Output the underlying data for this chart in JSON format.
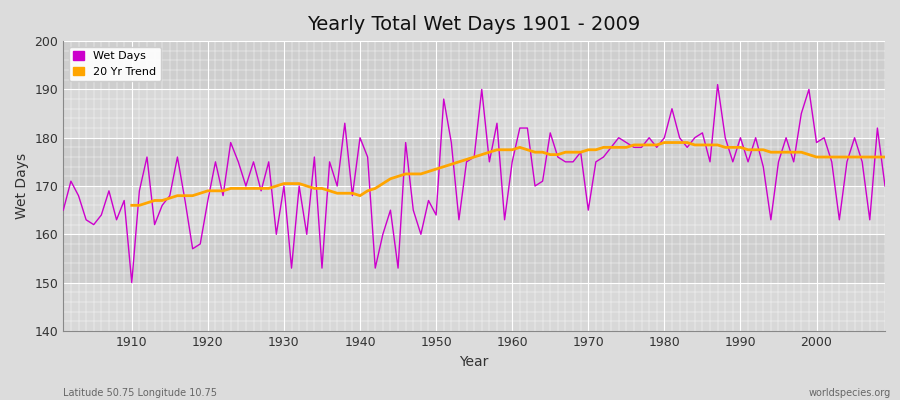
{
  "title": "Yearly Total Wet Days 1901 - 2009",
  "xlabel": "Year",
  "ylabel": "Wet Days",
  "ylim": [
    140,
    200
  ],
  "xlim": [
    1901,
    2009
  ],
  "yticks": [
    140,
    150,
    160,
    170,
    180,
    190,
    200
  ],
  "xticks": [
    1910,
    1920,
    1930,
    1940,
    1950,
    1960,
    1970,
    1980,
    1990,
    2000
  ],
  "wet_days_color": "#CC00CC",
  "trend_color": "#FFA500",
  "background_color": "#DCDCDC",
  "plot_bg_color": "#DCDCDC",
  "grid_color": "#FFFFFF",
  "wet_days_label": "Wet Days",
  "trend_label": "20 Yr Trend",
  "footer_left": "Latitude 50.75 Longitude 10.75",
  "footer_right": "worldspecies.org",
  "years": [
    1901,
    1902,
    1903,
    1904,
    1905,
    1906,
    1907,
    1908,
    1909,
    1910,
    1911,
    1912,
    1913,
    1914,
    1915,
    1916,
    1917,
    1918,
    1919,
    1920,
    1921,
    1922,
    1923,
    1924,
    1925,
    1926,
    1927,
    1928,
    1929,
    1930,
    1931,
    1932,
    1933,
    1934,
    1935,
    1936,
    1937,
    1938,
    1939,
    1940,
    1941,
    1942,
    1943,
    1944,
    1945,
    1946,
    1947,
    1948,
    1949,
    1950,
    1951,
    1952,
    1953,
    1954,
    1955,
    1956,
    1957,
    1958,
    1959,
    1960,
    1961,
    1962,
    1963,
    1964,
    1965,
    1966,
    1967,
    1968,
    1969,
    1970,
    1971,
    1972,
    1973,
    1974,
    1975,
    1976,
    1977,
    1978,
    1979,
    1980,
    1981,
    1982,
    1983,
    1984,
    1985,
    1986,
    1987,
    1988,
    1989,
    1990,
    1991,
    1992,
    1993,
    1994,
    1995,
    1996,
    1997,
    1998,
    1999,
    2000,
    2001,
    2002,
    2003,
    2004,
    2005,
    2006,
    2007,
    2008,
    2009
  ],
  "wet_days": [
    165,
    171,
    168,
    163,
    162,
    164,
    169,
    163,
    167,
    150,
    169,
    176,
    162,
    166,
    168,
    176,
    167,
    157,
    158,
    167,
    175,
    168,
    179,
    175,
    170,
    175,
    169,
    175,
    160,
    170,
    153,
    170,
    160,
    176,
    153,
    175,
    170,
    183,
    168,
    180,
    176,
    153,
    160,
    165,
    153,
    179,
    165,
    160,
    167,
    164,
    188,
    179,
    163,
    175,
    176,
    190,
    175,
    183,
    163,
    175,
    182,
    182,
    170,
    171,
    181,
    176,
    175,
    175,
    177,
    165,
    175,
    176,
    178,
    180,
    179,
    178,
    178,
    180,
    178,
    180,
    186,
    180,
    178,
    180,
    181,
    175,
    191,
    180,
    175,
    180,
    175,
    180,
    174,
    163,
    175,
    180,
    175,
    185,
    190,
    179,
    180,
    175,
    163,
    175,
    180,
    175,
    163,
    182,
    170
  ],
  "trend": [
    null,
    null,
    null,
    null,
    null,
    null,
    null,
    null,
    null,
    166,
    166,
    166.5,
    167,
    167,
    167.5,
    168,
    168,
    168,
    168.5,
    169,
    169,
    169,
    169.5,
    169.5,
    169.5,
    169.5,
    169.5,
    169.5,
    170,
    170.5,
    170.5,
    170.5,
    170,
    169.5,
    169.5,
    169,
    168.5,
    168.5,
    168.5,
    168,
    169,
    169.5,
    170.5,
    171.5,
    172,
    172.5,
    172.5,
    172.5,
    173,
    173.5,
    174,
    174.5,
    175,
    175.5,
    176,
    176.5,
    177,
    177.5,
    177.5,
    177.5,
    178,
    177.5,
    177,
    177,
    176.5,
    176.5,
    177,
    177,
    177,
    177.5,
    177.5,
    178,
    178,
    178,
    178,
    178.5,
    178.5,
    178.5,
    178.5,
    179,
    179,
    179,
    179,
    178.5,
    178.5,
    178.5,
    178.5,
    178,
    178,
    178,
    177.5,
    177.5,
    177.5,
    177,
    177,
    177,
    177,
    177,
    176.5,
    176,
    176,
    176,
    176,
    176,
    176,
    176,
    176,
    176,
    176
  ]
}
